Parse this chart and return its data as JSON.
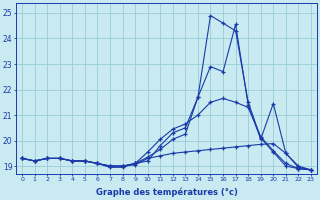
{
  "title": "Graphe des températures (°c)",
  "bg_color": "#c8eaf0",
  "grid_color": "#99ccd6",
  "line_color": "#1a3aaa",
  "xlim": [
    -0.5,
    23.5
  ],
  "ylim": [
    18.7,
    25.4
  ],
  "yticks": [
    19,
    20,
    21,
    22,
    23,
    24,
    25
  ],
  "xticks": [
    0,
    1,
    2,
    3,
    4,
    5,
    6,
    7,
    8,
    9,
    10,
    11,
    12,
    13,
    14,
    15,
    16,
    17,
    18,
    19,
    20,
    21,
    22,
    23
  ],
  "hours": [
    0,
    1,
    2,
    3,
    4,
    5,
    6,
    7,
    8,
    9,
    10,
    11,
    12,
    13,
    14,
    15,
    16,
    17,
    18,
    19,
    20,
    21,
    22,
    23
  ],
  "line1": [
    19.3,
    19.2,
    19.3,
    19.3,
    19.2,
    19.2,
    19.1,
    18.95,
    18.95,
    19.1,
    19.2,
    19.8,
    20.3,
    20.5,
    21.7,
    24.9,
    24.6,
    24.3,
    21.5,
    20.1,
    19.55,
    19.0,
    18.9,
    18.85
  ],
  "line2": [
    19.3,
    19.2,
    19.3,
    19.3,
    19.2,
    19.2,
    19.1,
    19.0,
    19.0,
    19.1,
    19.55,
    20.05,
    20.45,
    20.65,
    21.0,
    21.5,
    21.65,
    21.5,
    21.3,
    20.15,
    19.6,
    19.1,
    18.9,
    18.85
  ],
  "line3": [
    19.3,
    19.2,
    19.3,
    19.3,
    19.2,
    19.2,
    19.1,
    19.0,
    19.0,
    19.1,
    19.35,
    19.65,
    20.05,
    20.25,
    21.7,
    22.9,
    22.7,
    24.55,
    21.4,
    20.05,
    21.45,
    19.5,
    18.95,
    18.85
  ],
  "line4": [
    19.3,
    19.2,
    19.3,
    19.3,
    19.2,
    19.2,
    19.1,
    19.0,
    19.0,
    19.05,
    19.3,
    19.4,
    19.5,
    19.55,
    19.6,
    19.65,
    19.7,
    19.75,
    19.8,
    19.85,
    19.88,
    19.5,
    19.0,
    18.85
  ]
}
